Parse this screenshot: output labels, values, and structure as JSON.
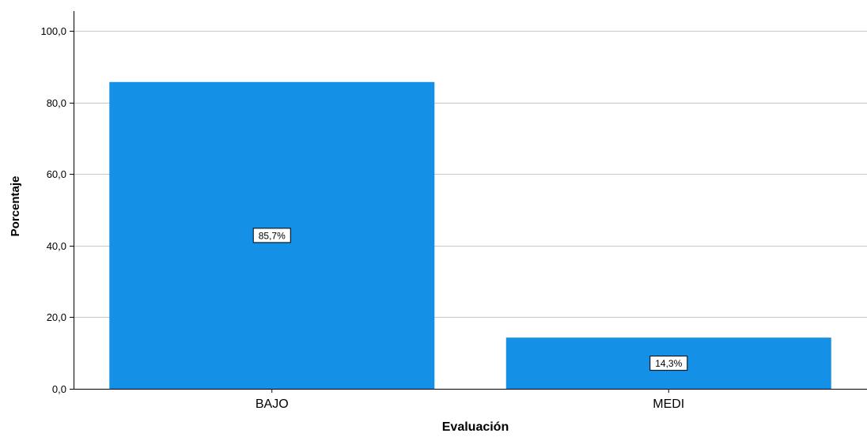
{
  "chart_data": {
    "type": "bar",
    "categories": [
      "BAJO",
      "MEDI"
    ],
    "values": [
      85.7,
      14.3
    ],
    "data_labels": [
      "85,7%",
      "14,3%"
    ],
    "xlabel": "Evaluación",
    "ylabel": "Porcentaje",
    "ylim": [
      0,
      100
    ],
    "yticks": [
      0,
      20,
      40,
      60,
      80,
      100
    ],
    "ytick_labels": [
      "0,0",
      "20,0",
      "40,0",
      "60,0",
      "80,0",
      "100,0"
    ],
    "grid": true,
    "bar_color": "#1490e6"
  }
}
